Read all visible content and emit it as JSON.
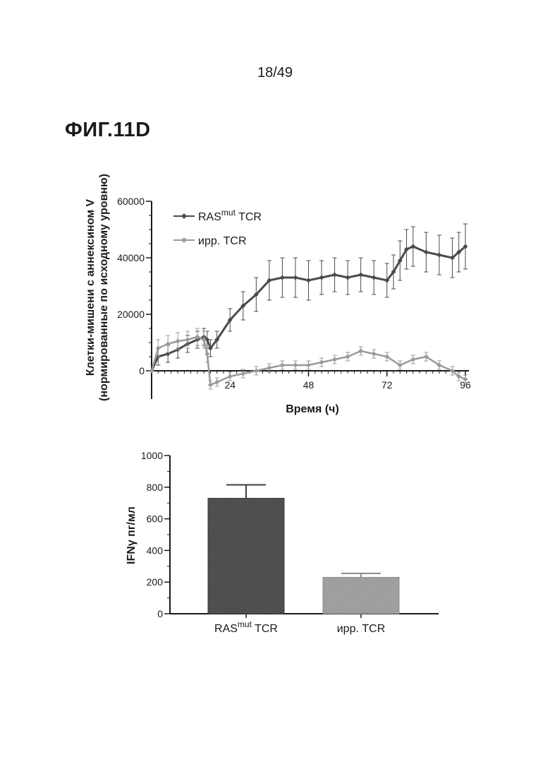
{
  "page": {
    "number": "18/49",
    "figure_label": "ФИГ.11D"
  },
  "colors": {
    "series1": "#4a4a4a",
    "series2": "#9a9a9a",
    "bar1": "#3d3d3d",
    "bar2": "#8c8c8c",
    "axis": "#1a1a1a"
  },
  "chart_data": [
    {
      "type": "line",
      "xlabel": "Время (ч)",
      "ylabel_line1": "Клетки-мишени с аннексином V",
      "ylabel_line2": "(нормированные по исходному уровню)",
      "xlim": [
        0,
        96
      ],
      "ylim": [
        -10000,
        60000
      ],
      "x_ticks": [
        24,
        48,
        72,
        96
      ],
      "y_ticks": [
        0,
        20000,
        40000,
        60000
      ],
      "legend_position": "top-left",
      "series": [
        {
          "name_main": "RAS",
          "name_sup": "mut",
          "name_tail": " TCR",
          "color": "#4a4a4a",
          "x": [
            0,
            2,
            5,
            8,
            11,
            14,
            16,
            17,
            18,
            20,
            24,
            28,
            32,
            36,
            40,
            44,
            48,
            52,
            56,
            60,
            64,
            68,
            72,
            74,
            76,
            78,
            80,
            84,
            88,
            92,
            94,
            96
          ],
          "y": [
            0,
            5000,
            6000,
            7500,
            9500,
            11000,
            12000,
            11000,
            8000,
            11000,
            18000,
            23000,
            27000,
            32000,
            33000,
            33000,
            32000,
            33000,
            34000,
            33000,
            34000,
            33000,
            32000,
            35000,
            39000,
            43000,
            44000,
            42000,
            41000,
            40000,
            42000,
            44000
          ],
          "error": [
            0,
            3000,
            3000,
            3000,
            3000,
            3000,
            3000,
            3000,
            3000,
            3000,
            4000,
            5000,
            6000,
            7000,
            7000,
            7000,
            7000,
            6000,
            6000,
            6000,
            6000,
            6000,
            6000,
            6000,
            7000,
            7000,
            7000,
            7000,
            7000,
            7000,
            7000,
            8000
          ]
        },
        {
          "name_main": "ирр. TCR",
          "color": "#9a9a9a",
          "x": [
            0,
            2,
            5,
            8,
            11,
            14,
            16,
            17,
            18,
            20,
            24,
            28,
            32,
            36,
            40,
            44,
            48,
            52,
            56,
            60,
            64,
            68,
            72,
            76,
            80,
            84,
            88,
            92,
            94,
            96
          ],
          "y": [
            0,
            8000,
            9500,
            10500,
            11000,
            12000,
            11000,
            6000,
            -5000,
            -4000,
            -2000,
            -1000,
            0,
            1000,
            2000,
            2000,
            2000,
            3000,
            4000,
            5000,
            7000,
            6000,
            5000,
            2000,
            4000,
            5000,
            2000,
            0,
            -2000,
            -3000
          ],
          "error": [
            0,
            3000,
            3000,
            3000,
            3000,
            3000,
            3000,
            3000,
            1500,
            1500,
            1500,
            1500,
            1500,
            1500,
            1500,
            1500,
            1500,
            1500,
            1500,
            1500,
            1500,
            1500,
            1500,
            1500,
            1500,
            1500,
            1500,
            1500,
            1500,
            1500
          ]
        }
      ]
    },
    {
      "type": "bar",
      "ylabel": "IFNγ пг/мл",
      "ylim": [
        0,
        1000
      ],
      "y_ticks": [
        0,
        200,
        400,
        600,
        800,
        1000
      ],
      "categories": [
        {
          "main": "RAS",
          "sup": "mut",
          "tail": " TCR"
        },
        {
          "main": "ирр. TCR"
        }
      ],
      "values": [
        730,
        230
      ],
      "errors": [
        85,
        25
      ]
    }
  ]
}
